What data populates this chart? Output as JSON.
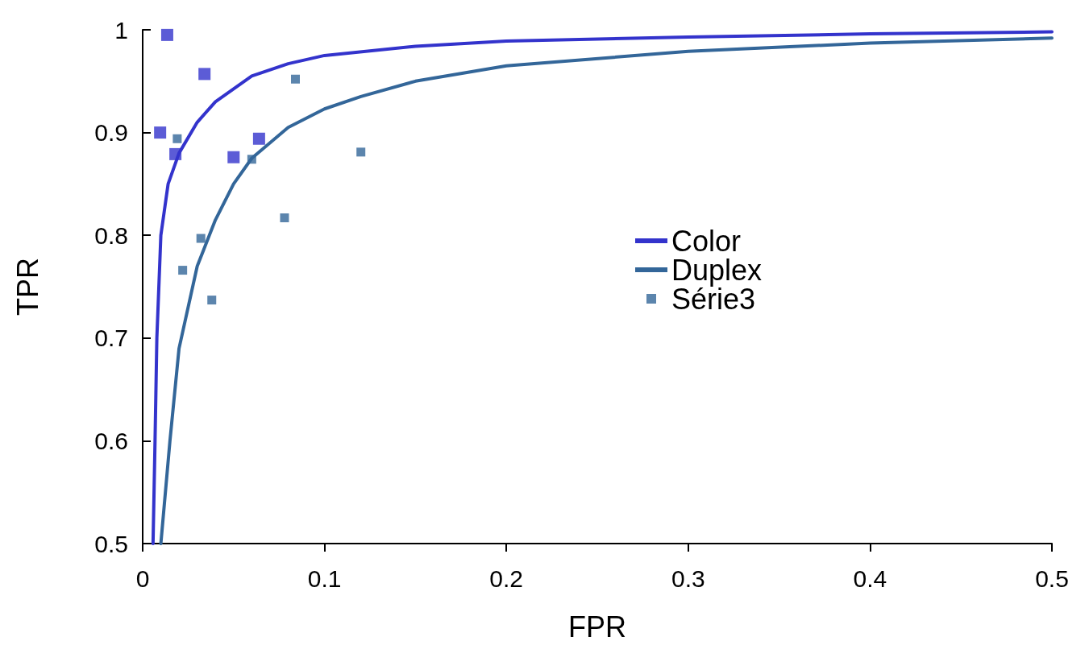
{
  "chart_data": {
    "type": "line",
    "xlabel": "FPR",
    "ylabel": "TPR",
    "xlim": [
      0,
      0.5
    ],
    "xticks": [
      0,
      0.1,
      0.2,
      0.3,
      0.4,
      0.5
    ],
    "ylim": [
      0.5,
      1
    ],
    "yticks": [
      0.5,
      0.6,
      0.7,
      0.8,
      0.9,
      1
    ],
    "grid": false,
    "legend": "right",
    "marker": "square",
    "series": [
      {
        "name": "Color",
        "marker": "none",
        "color": "#3333cc",
        "x": [
          0.0057,
          0.0068,
          0.0078,
          0.01,
          0.014,
          0.02,
          0.03,
          0.04,
          0.06,
          0.08,
          0.1,
          0.15,
          0.2,
          0.3,
          0.4,
          0.5
        ],
        "values": [
          0.5,
          0.6,
          0.7,
          0.8,
          0.85,
          0.88,
          0.91,
          0.93,
          0.955,
          0.967,
          0.975,
          0.984,
          0.989,
          0.993,
          0.996,
          0.998
        ]
      },
      {
        "name": "Duplex",
        "marker": "none",
        "color": "#336699",
        "x": [
          0.01,
          0.015,
          0.02,
          0.03,
          0.04,
          0.05,
          0.06,
          0.08,
          0.1,
          0.12,
          0.15,
          0.2,
          0.3,
          0.4,
          0.5
        ],
        "values": [
          0.5,
          0.6,
          0.69,
          0.77,
          0.815,
          0.85,
          0.875,
          0.905,
          0.923,
          0.935,
          0.95,
          0.965,
          0.979,
          0.987,
          0.992
        ]
      },
      {
        "name": "Série3",
        "type": "scatter",
        "color": "#336699",
        "x": [
          0.019,
          0.084,
          0.06,
          0.12,
          0.078,
          0.032,
          0.022,
          0.038
        ],
        "values": [
          0.894,
          0.952,
          0.874,
          0.881,
          0.817,
          0.797,
          0.766,
          0.737
        ]
      },
      {
        "type": "scatter",
        "color": "#3333cc",
        "x": [
          0.0135,
          0.034,
          0.0096,
          0.018,
          0.05,
          0.064
        ],
        "values": [
          0.995,
          0.957,
          0.9,
          0.879,
          0.876,
          0.894
        ]
      }
    ]
  }
}
